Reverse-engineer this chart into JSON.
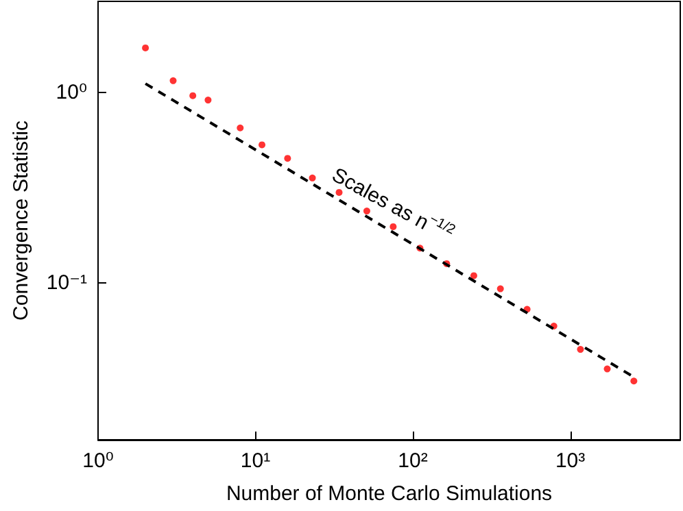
{
  "chart_data": {
    "type": "scatter",
    "xlabel": "Number of Monte Carlo Simulations",
    "ylabel": "Convergence Statistic",
    "log": "xy",
    "grid": false,
    "xlim": [
      1,
      5000
    ],
    "ylim": [
      0.015,
      3
    ],
    "xticks": [
      {
        "value": 1,
        "label": "10⁰"
      },
      {
        "value": 10,
        "label": "10¹"
      },
      {
        "value": 100,
        "label": "10²"
      },
      {
        "value": 1000,
        "label": "10³"
      }
    ],
    "yticks": [
      {
        "value": 0.1,
        "label": "10⁻¹"
      },
      {
        "value": 1,
        "label": "10⁰"
      }
    ],
    "annotations": [
      "Scales as n$^{−1/2}$"
    ],
    "series": [
      {
        "marker": "circle",
        "color": "#ff0000",
        "x": [
          2,
          3,
          4,
          5,
          8,
          11,
          16,
          23,
          34,
          51,
          75,
          111,
          164,
          244,
          360,
          532,
          787,
          1161,
          1718,
          2536
        ],
        "values": [
          1.71,
          1.15,
          0.96,
          0.91,
          0.65,
          0.53,
          0.45,
          0.355,
          0.298,
          0.238,
          0.197,
          0.152,
          0.126,
          0.109,
          0.093,
          0.0726,
          0.0593,
          0.0447,
          0.0353,
          0.0305
        ]
      },
      {
        "type": "line",
        "marker": "none",
        "line_style": "dashed",
        "color": "#000000",
        "x": [
          2,
          2536
        ],
        "values": [
          1.11,
          0.032
        ]
      }
    ]
  }
}
